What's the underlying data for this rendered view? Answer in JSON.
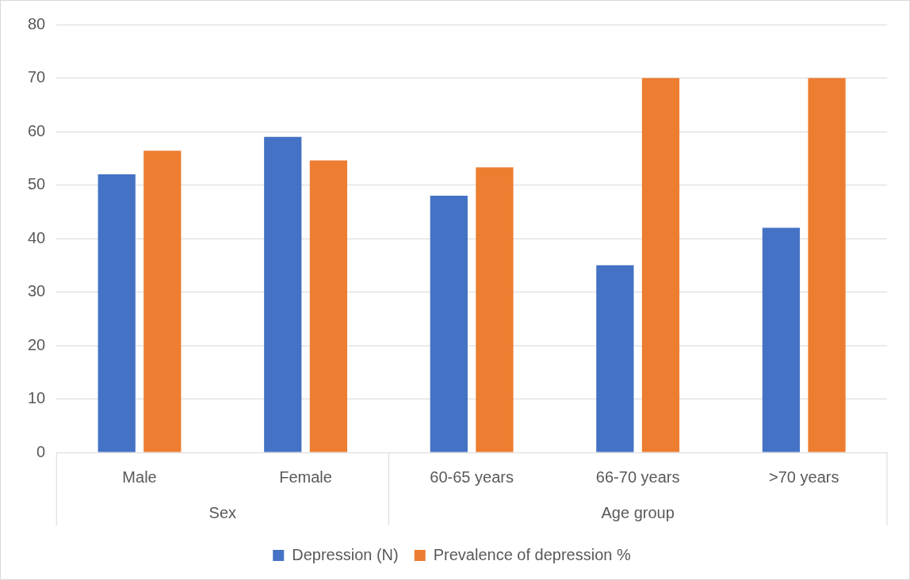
{
  "chart_data": {
    "type": "bar",
    "categories": [
      "Male",
      "Female",
      "60-65 years",
      "66-70 years",
      ">70 years"
    ],
    "series": [
      {
        "name": "Depression (N)",
        "color": "#4472c4",
        "values": [
          52,
          59,
          48,
          35,
          42
        ]
      },
      {
        "name": "Prevalence of depression %",
        "color": "#ed7d31",
        "values": [
          56.4,
          54.6,
          53.3,
          70,
          70
        ]
      }
    ],
    "annotations": [
      "Sex",
      "Age group"
    ],
    "ylim": [
      0,
      80
    ],
    "yticks": [
      0,
      10,
      20,
      30,
      40,
      50,
      60,
      70,
      80
    ],
    "grid": "y",
    "legend": "bottom"
  }
}
